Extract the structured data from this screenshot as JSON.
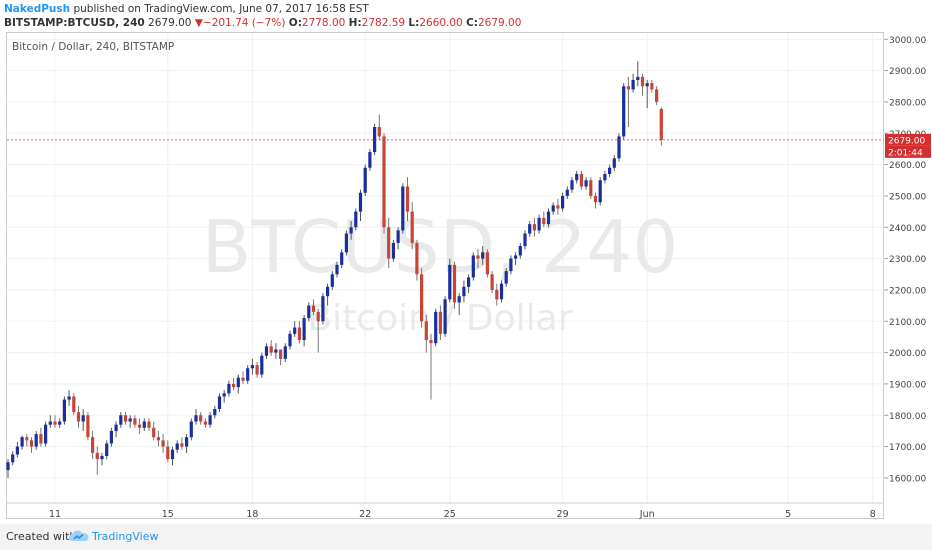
{
  "header": {
    "user": "NakedPush",
    "published_text": "published on TradingView.com, June 07, 2017 16:58 EST",
    "symbol": "BITSTAMP:BTCUSD, 240",
    "last_price": "2679.00",
    "change": "−201.74 (−7%)",
    "open_label": "O:",
    "open": "2778.00",
    "high_label": "H:",
    "high": "2782.59",
    "low_label": "L:",
    "low": "2660.00",
    "close_label": "C:",
    "close": "2679.00"
  },
  "chart_title": "Bitcoin / Dollar, 240, BITSTAMP",
  "watermark": {
    "line1": "BTCUSD, 240",
    "line2": "Bitcoin / Dollar"
  },
  "price_badge": {
    "price": "2679.00",
    "countdown": "2:01:44"
  },
  "footer": {
    "created_with": "Created with",
    "brand": "TradingView"
  },
  "colors": {
    "up": "#1a2f9e",
    "down": "#c94434",
    "grid": "#eef0f3",
    "price_line": "#d32f2f"
  },
  "chart_data": {
    "type": "candlestick",
    "title": "Bitcoin / Dollar, 240, BITSTAMP",
    "ylim": [
      1520,
      3020
    ],
    "y_ticks": [
      1600,
      1700,
      1800,
      1900,
      2000,
      2100,
      2200,
      2300,
      2400,
      2500,
      2600,
      2700,
      2800,
      2900,
      3000
    ],
    "y_tick_labels": [
      "1600.00",
      "1700.00",
      "1800.00",
      "1900.00",
      "2000.00",
      "2100.00",
      "2200.00",
      "2300.00",
      "2400.00",
      "2500.00",
      "2600.00",
      "2700.00",
      "2800.00",
      "2900.00",
      "3000.00"
    ],
    "x_ticks": [
      {
        "label": "11",
        "index": 10
      },
      {
        "label": "15",
        "index": 34
      },
      {
        "label": "18",
        "index": 52
      },
      {
        "label": "22",
        "index": 76
      },
      {
        "label": "25",
        "index": 94
      },
      {
        "label": "29",
        "index": 118
      },
      {
        "label": "Jun",
        "index": 136
      },
      {
        "label": "5",
        "index": 166
      },
      {
        "label": "8",
        "index": 184
      }
    ],
    "current_price": 2679,
    "candles": [
      [
        1625,
        1660,
        1600,
        1650
      ],
      [
        1650,
        1685,
        1640,
        1675
      ],
      [
        1675,
        1715,
        1665,
        1700
      ],
      [
        1700,
        1735,
        1690,
        1730
      ],
      [
        1730,
        1740,
        1700,
        1720
      ],
      [
        1720,
        1730,
        1680,
        1700
      ],
      [
        1700,
        1750,
        1690,
        1740
      ],
      [
        1740,
        1760,
        1700,
        1710
      ],
      [
        1710,
        1780,
        1700,
        1770
      ],
      [
        1770,
        1800,
        1760,
        1780
      ],
      [
        1780,
        1800,
        1760,
        1770
      ],
      [
        1770,
        1790,
        1760,
        1780
      ],
      [
        1780,
        1860,
        1770,
        1850
      ],
      [
        1850,
        1880,
        1830,
        1860
      ],
      [
        1860,
        1870,
        1800,
        1810
      ],
      [
        1810,
        1830,
        1760,
        1780
      ],
      [
        1780,
        1820,
        1750,
        1800
      ],
      [
        1800,
        1810,
        1720,
        1730
      ],
      [
        1730,
        1750,
        1660,
        1680
      ],
      [
        1680,
        1700,
        1610,
        1660
      ],
      [
        1660,
        1680,
        1640,
        1670
      ],
      [
        1670,
        1720,
        1660,
        1710
      ],
      [
        1710,
        1760,
        1700,
        1750
      ],
      [
        1750,
        1780,
        1730,
        1770
      ],
      [
        1770,
        1810,
        1760,
        1800
      ],
      [
        1800,
        1810,
        1770,
        1780
      ],
      [
        1780,
        1800,
        1760,
        1790
      ],
      [
        1790,
        1800,
        1760,
        1770
      ],
      [
        1770,
        1790,
        1740,
        1760
      ],
      [
        1760,
        1790,
        1750,
        1780
      ],
      [
        1780,
        1790,
        1750,
        1760
      ],
      [
        1760,
        1780,
        1720,
        1730
      ],
      [
        1730,
        1750,
        1700,
        1720
      ],
      [
        1720,
        1740,
        1680,
        1700
      ],
      [
        1700,
        1720,
        1650,
        1660
      ],
      [
        1660,
        1700,
        1640,
        1690
      ],
      [
        1690,
        1720,
        1680,
        1710
      ],
      [
        1710,
        1730,
        1690,
        1700
      ],
      [
        1700,
        1740,
        1680,
        1730
      ],
      [
        1730,
        1790,
        1720,
        1780
      ],
      [
        1780,
        1820,
        1770,
        1800
      ],
      [
        1800,
        1810,
        1770,
        1780
      ],
      [
        1780,
        1790,
        1760,
        1770
      ],
      [
        1770,
        1810,
        1760,
        1800
      ],
      [
        1800,
        1830,
        1790,
        1820
      ],
      [
        1820,
        1870,
        1810,
        1860
      ],
      [
        1860,
        1880,
        1840,
        1870
      ],
      [
        1870,
        1910,
        1860,
        1900
      ],
      [
        1900,
        1920,
        1880,
        1890
      ],
      [
        1890,
        1930,
        1870,
        1920
      ],
      [
        1920,
        1940,
        1900,
        1910
      ],
      [
        1910,
        1960,
        1900,
        1950
      ],
      [
        1950,
        1980,
        1930,
        1960
      ],
      [
        1960,
        1970,
        1920,
        1930
      ],
      [
        1930,
        2000,
        1920,
        1990
      ],
      [
        1990,
        2030,
        1980,
        2020
      ],
      [
        2020,
        2040,
        1990,
        2000
      ],
      [
        2000,
        2030,
        1980,
        2010
      ],
      [
        2010,
        2000,
        1960,
        1980
      ],
      [
        1980,
        2030,
        1970,
        2020
      ],
      [
        2020,
        2070,
        2010,
        2060
      ],
      [
        2060,
        2100,
        2050,
        2080
      ],
      [
        2080,
        2100,
        2030,
        2040
      ],
      [
        2040,
        2120,
        2020,
        2110
      ],
      [
        2110,
        2160,
        2100,
        2150
      ],
      [
        2150,
        2170,
        2120,
        2130
      ],
      [
        2130,
        2140,
        2000,
        2100
      ],
      [
        2100,
        2190,
        2090,
        2180
      ],
      [
        2180,
        2220,
        2150,
        2210
      ],
      [
        2210,
        2260,
        2200,
        2250
      ],
      [
        2250,
        2290,
        2240,
        2280
      ],
      [
        2280,
        2330,
        2270,
        2320
      ],
      [
        2320,
        2390,
        2310,
        2380
      ],
      [
        2380,
        2420,
        2360,
        2400
      ],
      [
        2400,
        2460,
        2390,
        2450
      ],
      [
        2450,
        2520,
        2420,
        2510
      ],
      [
        2510,
        2600,
        2500,
        2590
      ],
      [
        2590,
        2650,
        2580,
        2640
      ],
      [
        2640,
        2730,
        2630,
        2720
      ],
      [
        2720,
        2760,
        2680,
        2690
      ],
      [
        2690,
        2700,
        2380,
        2400
      ],
      [
        2400,
        2430,
        2270,
        2300
      ],
      [
        2300,
        2360,
        2290,
        2350
      ],
      [
        2350,
        2400,
        2330,
        2390
      ],
      [
        2390,
        2540,
        2380,
        2530
      ],
      [
        2530,
        2560,
        2420,
        2450
      ],
      [
        2450,
        2480,
        2330,
        2350
      ],
      [
        2350,
        2360,
        2230,
        2250
      ],
      [
        2250,
        2270,
        2080,
        2100
      ],
      [
        2100,
        2120,
        2000,
        2040
      ],
      [
        2040,
        2060,
        1850,
        2030
      ],
      [
        2030,
        2140,
        2020,
        2130
      ],
      [
        2130,
        2150,
        2040,
        2060
      ],
      [
        2060,
        2180,
        2050,
        2170
      ],
      [
        2170,
        2300,
        2160,
        2280
      ],
      [
        2280,
        2290,
        2140,
        2160
      ],
      [
        2160,
        2190,
        2120,
        2180
      ],
      [
        2180,
        2230,
        2160,
        2210
      ],
      [
        2210,
        2250,
        2190,
        2240
      ],
      [
        2240,
        2320,
        2230,
        2310
      ],
      [
        2310,
        2330,
        2270,
        2300
      ],
      [
        2300,
        2340,
        2280,
        2320
      ],
      [
        2320,
        2330,
        2240,
        2250
      ],
      [
        2250,
        2260,
        2190,
        2200
      ],
      [
        2200,
        2220,
        2150,
        2170
      ],
      [
        2170,
        2230,
        2160,
        2220
      ],
      [
        2220,
        2270,
        2210,
        2260
      ],
      [
        2260,
        2310,
        2250,
        2300
      ],
      [
        2300,
        2320,
        2280,
        2310
      ],
      [
        2310,
        2350,
        2300,
        2340
      ],
      [
        2340,
        2390,
        2330,
        2380
      ],
      [
        2380,
        2420,
        2370,
        2410
      ],
      [
        2410,
        2430,
        2370,
        2390
      ],
      [
        2390,
        2440,
        2380,
        2430
      ],
      [
        2430,
        2450,
        2400,
        2410
      ],
      [
        2410,
        2460,
        2400,
        2450
      ],
      [
        2450,
        2480,
        2440,
        2470
      ],
      [
        2470,
        2490,
        2440,
        2460
      ],
      [
        2460,
        2510,
        2450,
        2500
      ],
      [
        2500,
        2530,
        2490,
        2520
      ],
      [
        2520,
        2560,
        2510,
        2550
      ],
      [
        2550,
        2580,
        2540,
        2570
      ],
      [
        2570,
        2580,
        2520,
        2530
      ],
      [
        2530,
        2560,
        2520,
        2550
      ],
      [
        2550,
        2560,
        2490,
        2500
      ],
      [
        2500,
        2510,
        2460,
        2480
      ],
      [
        2480,
        2560,
        2470,
        2550
      ],
      [
        2550,
        2580,
        2540,
        2570
      ],
      [
        2570,
        2600,
        2560,
        2590
      ],
      [
        2590,
        2630,
        2580,
        2620
      ],
      [
        2620,
        2700,
        2610,
        2690
      ],
      [
        2690,
        2860,
        2680,
        2850
      ],
      [
        2850,
        2880,
        2720,
        2840
      ],
      [
        2840,
        2890,
        2830,
        2870
      ],
      [
        2870,
        2930,
        2850,
        2880
      ],
      [
        2880,
        2890,
        2820,
        2850
      ],
      [
        2850,
        2870,
        2780,
        2860
      ],
      [
        2860,
        2870,
        2830,
        2840
      ],
      [
        2840,
        2850,
        2790,
        2800
      ],
      [
        2778,
        2782.59,
        2660,
        2679
      ]
    ]
  }
}
